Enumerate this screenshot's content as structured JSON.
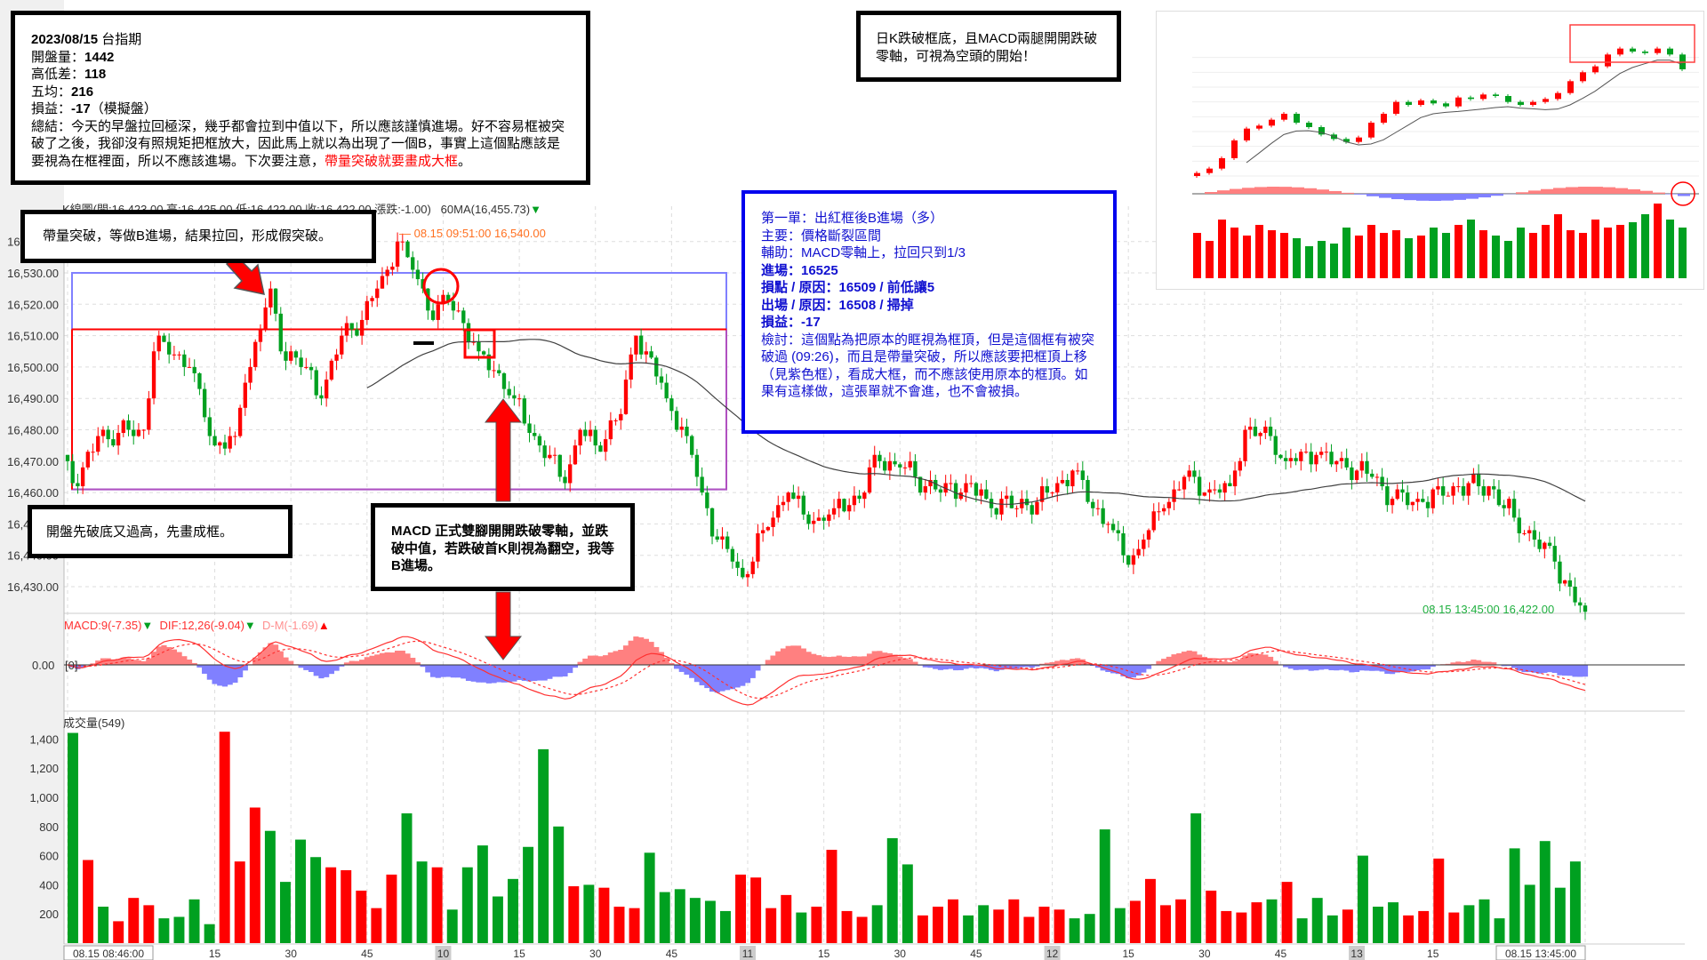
{
  "header": {
    "kline": "K線圖(開:16,423.00 高:16,425.00 低:16,422.00 收:16,422.00 漲跌:-1.00)",
    "ma": "60MA(16,455.73)",
    "ma_arrow": "▼",
    "macd_label": "MACD:9(-7.35)",
    "dif_label": "DIF:12,26(-9.04)",
    "dm_label": "D-M(-1.69)",
    "down_arrow": "▼",
    "up_arrow": "▲",
    "zero_label": "0.00",
    "zero_bracket": "[0]",
    "volume_label": "成交量(549)",
    "high_marker": "— 08.15 09:51:00  16,540.00",
    "last_marker": "08.15 13:45:00  16,422.00"
  },
  "summary": {
    "title_date": "2023/08/15",
    "title_name": " 台指期",
    "lines": [
      {
        "label": "開盤量：",
        "value": "1442"
      },
      {
        "label": "高低差：",
        "value": "118"
      },
      {
        "label": "五均：",
        "value": "216"
      },
      {
        "label": "損益：",
        "value": "-17",
        "suffix": "（模擬盤）"
      }
    ],
    "conclusion": "總結：今天的早盤拉回極深，幾乎都會拉到中值以下，所以應該謹慎進場。好不容易框被突破了之後，我卻沒有照規矩把框放大，因此馬上就以為出現了一個B，事實上這個點應該是要視為在框裡面，所以不應該進場。下次要注意，",
    "conclusion_red": "帶量突破就要畫成大框",
    "conclusion_end": "。"
  },
  "notes": {
    "daily": "日K跌破框底，且MACD兩腿開開跌破零軸，可視為空頭的開始！",
    "breakout": "帶量突破，等做B進場，結果拉回，形成假突破。",
    "open_box": "開盤先破底又過高，先畫成框。",
    "macd_note": "MACD 正式雙腳開開跌破零軸，並跌破中值，若跌破首K則視為翻空，我等B進場。"
  },
  "trade": {
    "lines": [
      "第一單：出紅框後B進場（多）",
      "主要：價格斷裂區間",
      "輔助：MACD零軸上，拉回只到1/3",
      "進場：16525",
      "損點 / 原因：16509 / 前低讓5",
      "出場 / 原因：16508 / 掃掉",
      "損益：-17"
    ],
    "review": "檢討：這個點為把原本的眶視為框頂，但是這個框有被突破過 (09:26)，而且是帶量突破，所以應該要把框頂上移（見紫色框），看成大框，而不應該使用原本的框頂。如果有這樣做，這張單就不會進，也不會被損。"
  },
  "colors": {
    "up": "#ff0000",
    "down": "#00a020",
    "ma": "#404040",
    "hist_pos": "#ff8080",
    "hist_neg": "#8080ff",
    "annotation_blue": "#0000ee",
    "box_purple": "#b050c0"
  },
  "chart_data": {
    "type": "candlestick",
    "date": "08.15",
    "price_ticks": [
      "16,540.00",
      "16,530.00",
      "16,520.00",
      "16,510.00",
      "16,500.00",
      "16,490.00",
      "16,480.00",
      "16,470.00",
      "16,460.00",
      "16,450.00",
      "16,440.00",
      "16,430.00"
    ],
    "price_range": [
      16420,
      16545
    ],
    "time_ticks": [
      "08.15 08:46:00",
      "15",
      "30",
      "45",
      "10",
      "15",
      "30",
      "45",
      "11",
      "15",
      "30",
      "45",
      "12",
      "15",
      "30",
      "45",
      "13",
      "15",
      "08.15 13:45:00"
    ],
    "time_range": [
      "08:46",
      "13:45"
    ],
    "price_path": [
      [
        "08:46",
        16470
      ],
      [
        "08:48",
        16462
      ],
      [
        "08:52",
        16478
      ],
      [
        "09:01",
        16480
      ],
      [
        "09:03",
        16505
      ],
      [
        "09:05",
        16508
      ],
      [
        "09:10",
        16500
      ],
      [
        "09:15",
        16475
      ],
      [
        "09:19",
        16478
      ],
      [
        "09:21",
        16495
      ],
      [
        "09:26",
        16525
      ],
      [
        "09:28",
        16505
      ],
      [
        "09:33",
        16500
      ],
      [
        "09:36",
        16490
      ],
      [
        "09:40",
        16510
      ],
      [
        "09:44",
        16515
      ],
      [
        "09:47",
        16525
      ],
      [
        "09:50",
        16532
      ],
      [
        "09:51",
        16540
      ],
      [
        "09:53",
        16535
      ],
      [
        "09:56",
        16525
      ],
      [
        "09:58",
        16515
      ],
      [
        "10:00",
        16523
      ],
      [
        "10:03",
        16518
      ],
      [
        "10:07",
        16505
      ],
      [
        "10:11",
        16498
      ],
      [
        "10:14",
        16490
      ],
      [
        "10:18",
        16478
      ],
      [
        "10:24",
        16463
      ],
      [
        "10:27",
        16480
      ],
      [
        "10:30",
        16475
      ],
      [
        "10:35",
        16485
      ],
      [
        "10:38",
        16510
      ],
      [
        "10:40",
        16505
      ],
      [
        "10:44",
        16490
      ],
      [
        "10:48",
        16478
      ],
      [
        "10:51",
        16460
      ],
      [
        "10:54",
        16445
      ],
      [
        "10:57",
        16438
      ],
      [
        "10:59",
        16433
      ],
      [
        "11:03",
        16448
      ],
      [
        "11:08",
        16460
      ],
      [
        "11:12",
        16450
      ],
      [
        "11:17",
        16455
      ],
      [
        "11:23",
        16460
      ],
      [
        "11:25",
        16472
      ],
      [
        "11:30",
        16468
      ],
      [
        "11:33",
        16465
      ],
      [
        "11:38",
        16460
      ],
      [
        "11:43",
        16463
      ],
      [
        "11:47",
        16458
      ],
      [
        "11:53",
        16455
      ],
      [
        "12:00",
        16460
      ],
      [
        "12:04",
        16467
      ],
      [
        "12:08",
        16455
      ],
      [
        "12:11",
        16450
      ],
      [
        "12:15",
        16437
      ],
      [
        "12:18",
        16445
      ],
      [
        "12:22",
        16455
      ],
      [
        "12:26",
        16465
      ],
      [
        "12:30",
        16460
      ],
      [
        "12:35",
        16462
      ],
      [
        "12:38",
        16480
      ],
      [
        "12:43",
        16478
      ],
      [
        "12:46",
        16470
      ],
      [
        "12:52",
        16472
      ],
      [
        "12:58",
        16468
      ],
      [
        "13:03",
        16465
      ],
      [
        "13:07",
        16458
      ],
      [
        "13:13",
        16457
      ],
      [
        "13:20",
        16462
      ],
      [
        "13:26",
        16462
      ],
      [
        "13:31",
        16452
      ],
      [
        "13:35",
        16445
      ],
      [
        "13:39",
        16438
      ],
      [
        "13:43",
        16425
      ],
      [
        "13:45",
        16422
      ]
    ],
    "ma_period": 60,
    "volume_ticks": [
      "1,400",
      "1,200",
      "1,000",
      "800",
      "600",
      "400",
      "200"
    ],
    "volume_range": [
      0,
      1500
    ],
    "volume": [
      1442,
      570,
      250,
      150,
      310,
      260,
      170,
      180,
      300,
      130,
      1450,
      560,
      930,
      770,
      420,
      710,
      590,
      520,
      500,
      360,
      240,
      470,
      890,
      560,
      520,
      230,
      520,
      670,
      320,
      440,
      660,
      1330,
      800,
      390,
      400,
      380,
      250,
      240,
      620,
      350,
      370,
      310,
      290,
      220,
      470,
      450,
      240,
      330,
      210,
      250,
      640,
      220,
      180,
      260,
      720,
      540,
      190,
      250,
      300,
      190,
      260,
      230,
      300,
      180,
      250,
      230,
      170,
      200,
      780,
      240,
      290,
      440,
      260,
      300,
      890,
      360,
      220,
      210,
      280,
      300,
      420,
      170,
      310,
      190,
      230,
      600,
      250,
      280,
      190,
      220,
      580,
      210,
      260,
      300,
      170,
      650,
      400,
      700,
      380,
      560
    ],
    "box_levels": {
      "blue_top": 16530,
      "red_top": 16512,
      "bottom": 16461
    }
  },
  "inset_chart": {
    "closes": [
      13100,
      13250,
      13600,
      14200,
      14600,
      14700,
      14900,
      15100,
      14800,
      14650,
      14400,
      14250,
      14150,
      14300,
      14800,
      15100,
      15500,
      15400,
      15550,
      15450,
      15350,
      15650,
      15600,
      15750,
      15700,
      15500,
      15400,
      15500,
      15600,
      15800,
      16200,
      16500,
      16700,
      17100,
      17300,
      17200,
      17150,
      17300,
      17100,
      16600
    ],
    "volume": [
      85,
      70,
      110,
      95,
      80,
      100,
      90,
      85,
      75,
      60,
      70,
      65,
      95,
      80,
      100,
      85,
      90,
      75,
      80,
      95,
      85,
      100,
      110,
      90,
      80,
      70,
      95,
      85,
      100,
      120,
      90,
      85,
      110,
      95,
      100,
      105,
      120,
      140,
      110,
      95
    ]
  }
}
